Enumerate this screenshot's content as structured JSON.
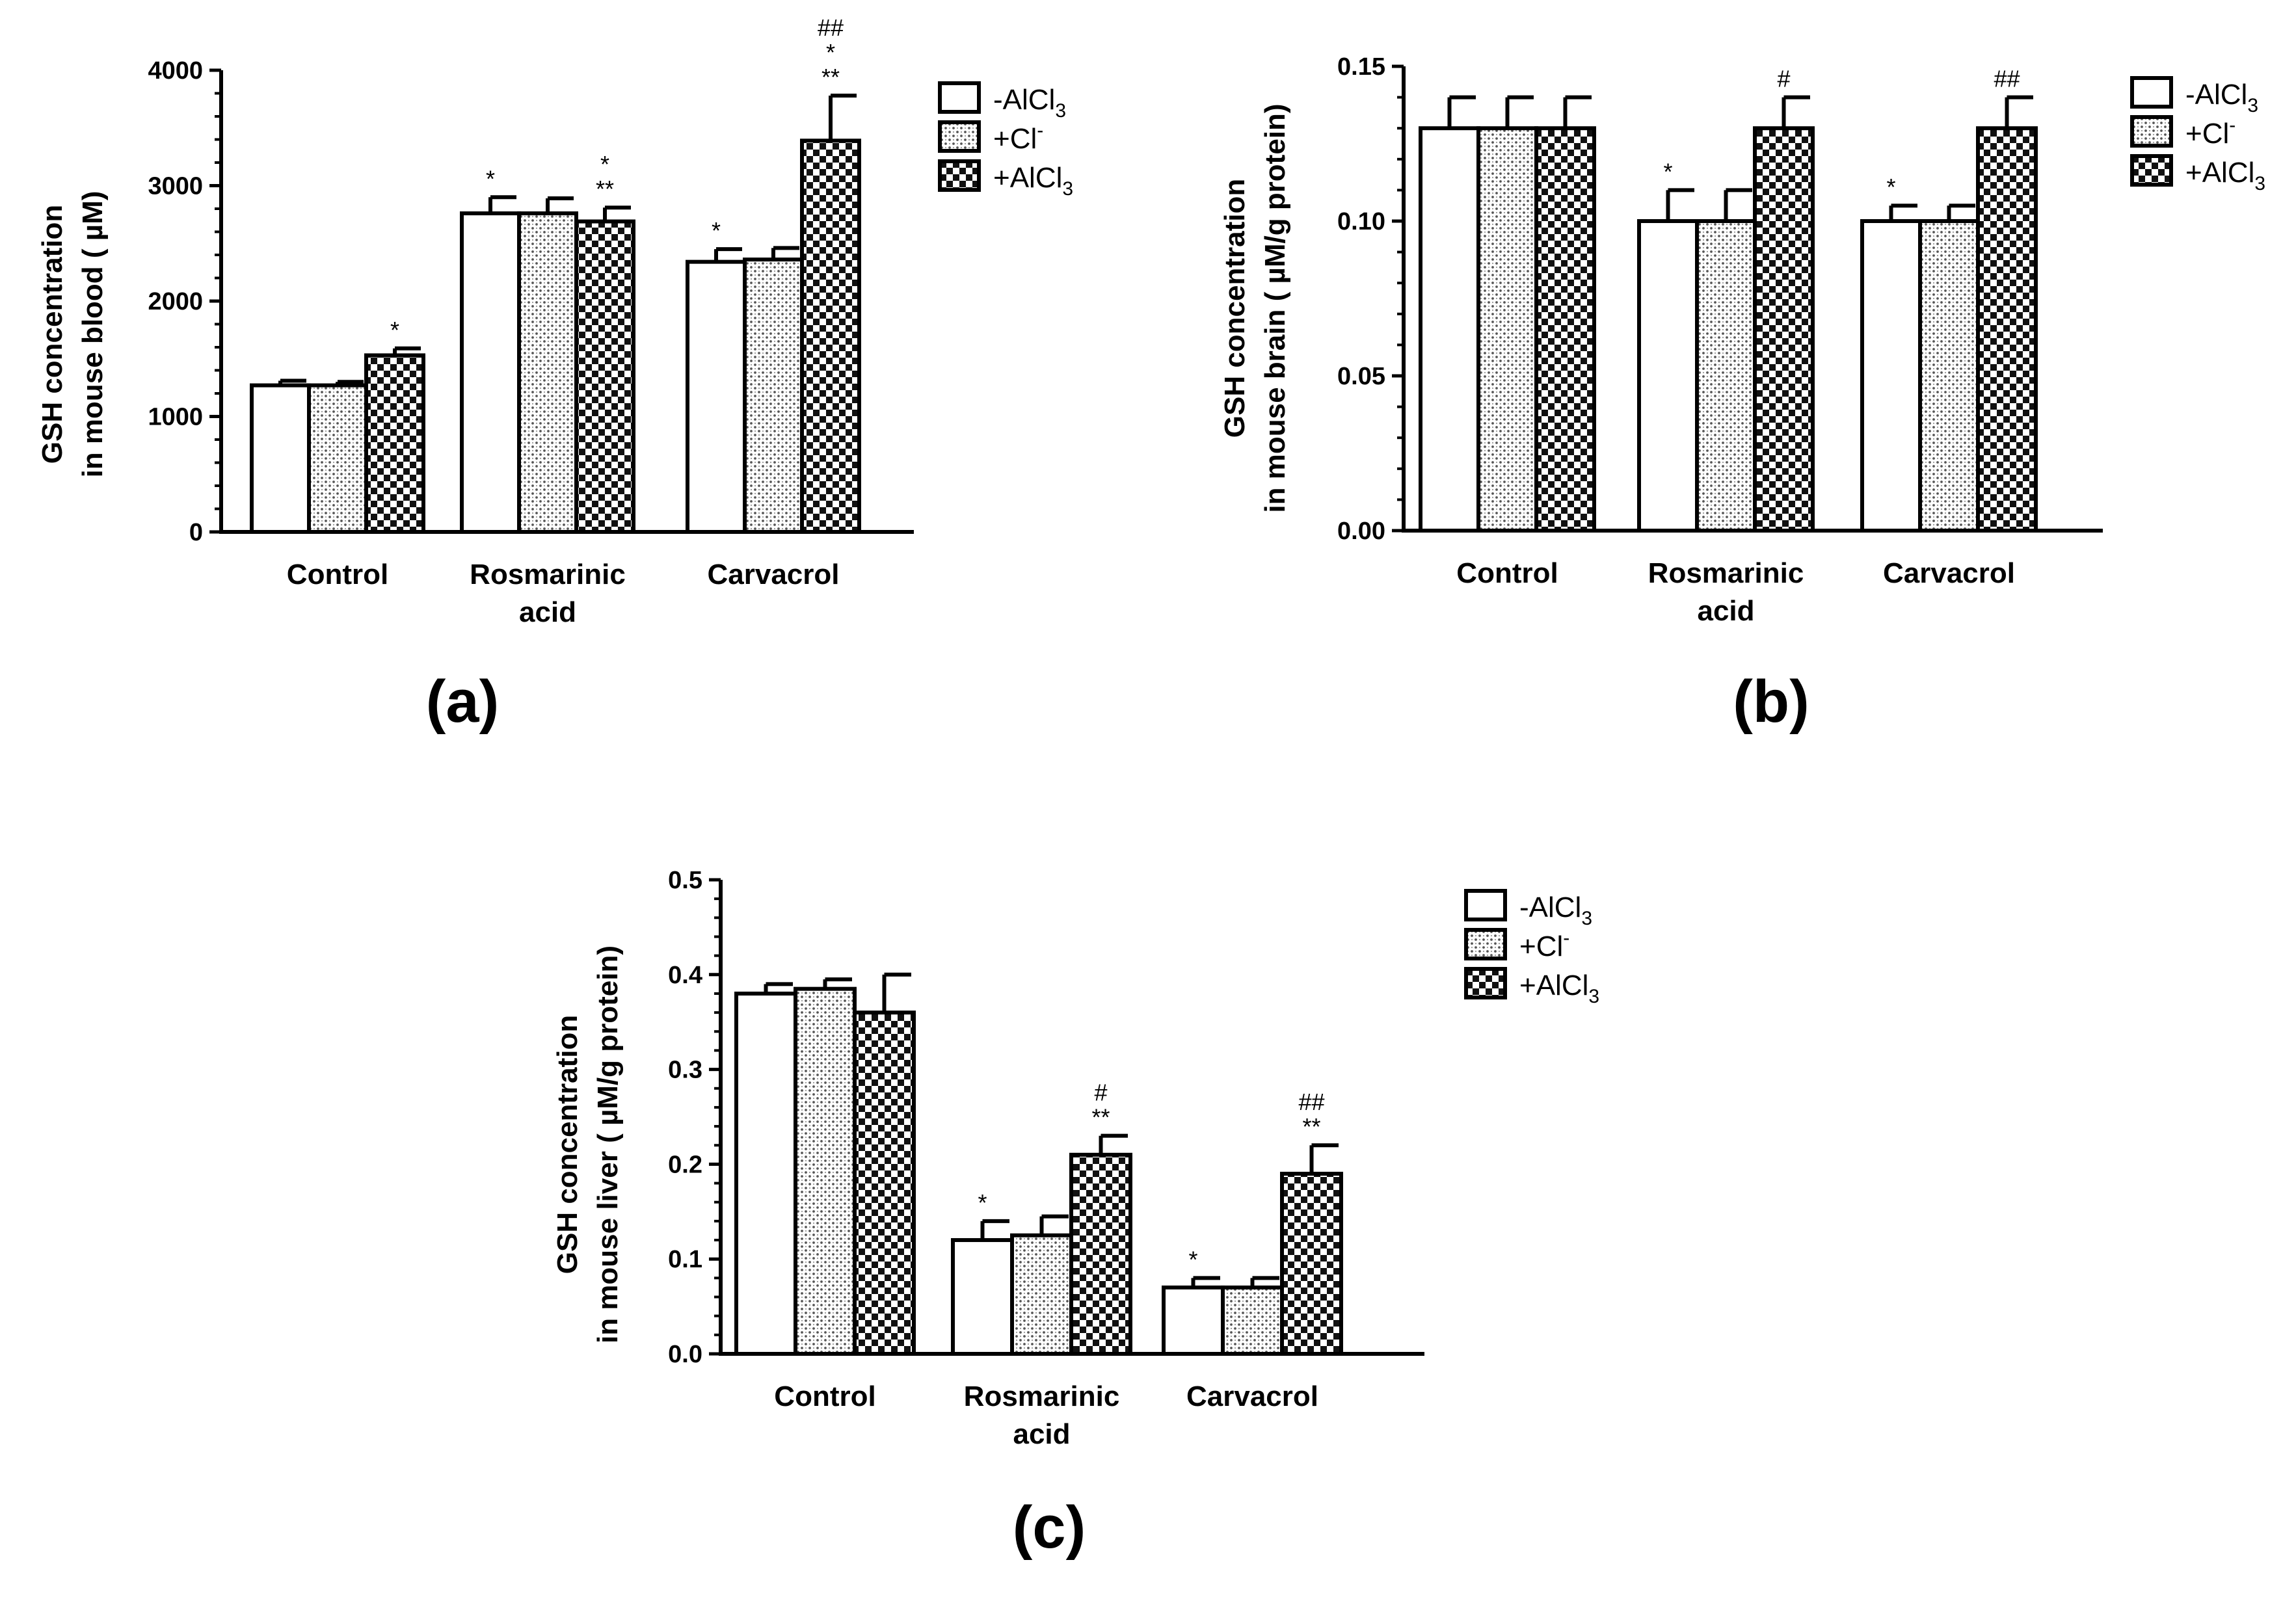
{
  "chart_data": [
    {
      "type": "bar",
      "panel_label": "(a)",
      "ylabel_line1": "GSH concentration",
      "ylabel_line2": "in mouse blood ( µM)",
      "yticks": [
        "0",
        "1000",
        "2000",
        "3000",
        "4000"
      ],
      "ylim": [
        0,
        4000
      ],
      "categories": [
        [
          "Control"
        ],
        [
          "Rosmarinic",
          "acid"
        ],
        [
          "Carvacrol"
        ]
      ],
      "series": [
        {
          "name": "-AlCl3",
          "legend_main": "-AlCl",
          "legend_sub": "3",
          "pattern": "white",
          "values": [
            1270,
            2760,
            2340
          ],
          "errors": [
            40,
            140,
            110
          ],
          "annotations": [
            [],
            [
              "*"
            ],
            [
              "*"
            ]
          ]
        },
        {
          "name": "+Cl-",
          "legend_main": "+Cl",
          "legend_sup": "-",
          "pattern": "dots",
          "values": [
            1270,
            2760,
            2360
          ],
          "errors": [
            30,
            130,
            100
          ],
          "annotations": [
            [],
            [],
            []
          ]
        },
        {
          "name": "+AlCl3",
          "legend_main": "+AlCl",
          "legend_sub": "3",
          "pattern": "checker",
          "values": [
            1530,
            2690,
            3390
          ],
          "errors": [
            60,
            120,
            390
          ],
          "annotations": [
            [
              "*"
            ],
            [
              "**",
              "*"
            ],
            [
              "**",
              "*",
              "##"
            ]
          ]
        }
      ]
    },
    {
      "type": "bar",
      "panel_label": "(b)",
      "ylabel_line1": "GSH concentration",
      "ylabel_line2": "in mouse brain ( µM/g protein)",
      "yticks": [
        "0.00",
        "0.05",
        "0.10",
        "0.15"
      ],
      "ylim": [
        0,
        0.15
      ],
      "categories": [
        [
          "Control"
        ],
        [
          "Rosmarinic",
          "acid"
        ],
        [
          "Carvacrol"
        ]
      ],
      "series": [
        {
          "name": "-AlCl3",
          "legend_main": "-AlCl",
          "legend_sub": "3",
          "pattern": "white",
          "values": [
            0.13,
            0.1,
            0.1
          ],
          "errors": [
            0.01,
            0.01,
            0.005
          ],
          "annotations": [
            [],
            [
              "*"
            ],
            [
              "*"
            ]
          ]
        },
        {
          "name": "+Cl-",
          "legend_main": "+Cl",
          "legend_sup": "-",
          "pattern": "dots",
          "values": [
            0.13,
            0.1,
            0.1
          ],
          "errors": [
            0.01,
            0.01,
            0.005
          ],
          "annotations": [
            [],
            [],
            []
          ]
        },
        {
          "name": "+AlCl3",
          "legend_main": "+AlCl",
          "legend_sub": "3",
          "pattern": "checker",
          "values": [
            0.13,
            0.13,
            0.13
          ],
          "errors": [
            0.01,
            0.01,
            0.01
          ],
          "annotations": [
            [],
            [
              "#"
            ],
            [
              "##"
            ]
          ]
        }
      ]
    },
    {
      "type": "bar",
      "panel_label": "(c)",
      "ylabel_line1": "GSH concentration",
      "ylabel_line2": "in mouse liver ( µM/g protein)",
      "yticks": [
        "0.0",
        "0.1",
        "0.2",
        "0.3",
        "0.4",
        "0.5"
      ],
      "ylim": [
        0,
        0.5
      ],
      "categories": [
        [
          "Control"
        ],
        [
          "Rosmarinic",
          "acid"
        ],
        [
          "Carvacrol"
        ]
      ],
      "series": [
        {
          "name": "-AlCl3",
          "legend_main": "-AlCl",
          "legend_sub": "3",
          "pattern": "white",
          "values": [
            0.38,
            0.12,
            0.07
          ],
          "errors": [
            0.01,
            0.02,
            0.01
          ],
          "annotations": [
            [],
            [
              "*"
            ],
            [
              "*"
            ]
          ]
        },
        {
          "name": "+Cl-",
          "legend_main": "+Cl",
          "legend_sup": "-",
          "pattern": "dots",
          "values": [
            0.385,
            0.125,
            0.07
          ],
          "errors": [
            0.01,
            0.02,
            0.01
          ],
          "annotations": [
            [],
            [],
            []
          ]
        },
        {
          "name": "+AlCl3",
          "legend_main": "+AlCl",
          "legend_sub": "3",
          "pattern": "checker",
          "values": [
            0.36,
            0.21,
            0.19
          ],
          "errors": [
            0.04,
            0.02,
            0.03
          ],
          "annotations": [
            [],
            [
              "**",
              "#"
            ],
            [
              "**",
              "##"
            ]
          ]
        }
      ]
    }
  ]
}
